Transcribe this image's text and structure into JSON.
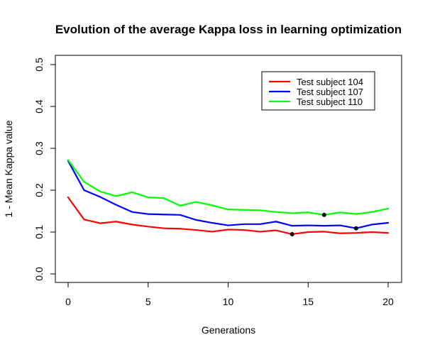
{
  "chart_data": {
    "type": "line",
    "title": "Evolution of the average Kappa loss in learning optimization",
    "xlabel": "Generations",
    "ylabel": "1 - Mean Kappa value",
    "xlim": [
      0,
      20
    ],
    "ylim": [
      0,
      0.5
    ],
    "x_ticks": [
      "0",
      "5",
      "10",
      "15",
      "20"
    ],
    "y_ticks": [
      "0.0",
      "0.1",
      "0.2",
      "0.3",
      "0.4",
      "0.5"
    ],
    "legend_position": "top-right",
    "grid": false,
    "x": [
      0,
      1,
      2,
      3,
      4,
      5,
      6,
      7,
      8,
      9,
      10,
      11,
      12,
      13,
      14,
      15,
      16,
      17,
      18,
      19,
      20
    ],
    "series": [
      {
        "name": "Test subject 104",
        "color": "#ff0000",
        "values": [
          0.183,
          0.13,
          0.121,
          0.125,
          0.118,
          0.113,
          0.109,
          0.108,
          0.105,
          0.101,
          0.106,
          0.105,
          0.101,
          0.104,
          0.095,
          0.1,
          0.101,
          0.097,
          0.098,
          0.1,
          0.098
        ],
        "marked_point": {
          "x": 14,
          "y": 0.095
        }
      },
      {
        "name": "Test subject 107",
        "color": "#0000ff",
        "values": [
          0.27,
          0.2,
          0.184,
          0.165,
          0.148,
          0.143,
          0.142,
          0.141,
          0.129,
          0.122,
          0.116,
          0.119,
          0.119,
          0.125,
          0.115,
          0.116,
          0.115,
          0.116,
          0.109,
          0.118,
          0.122
        ],
        "marked_point": {
          "x": 18,
          "y": 0.109
        }
      },
      {
        "name": "Test subject 110",
        "color": "#00ff00",
        "values": [
          0.272,
          0.22,
          0.197,
          0.186,
          0.195,
          0.183,
          0.181,
          0.163,
          0.172,
          0.164,
          0.154,
          0.153,
          0.152,
          0.148,
          0.145,
          0.147,
          0.141,
          0.147,
          0.143,
          0.148,
          0.156
        ],
        "marked_point": {
          "x": 16,
          "y": 0.141
        }
      }
    ]
  }
}
